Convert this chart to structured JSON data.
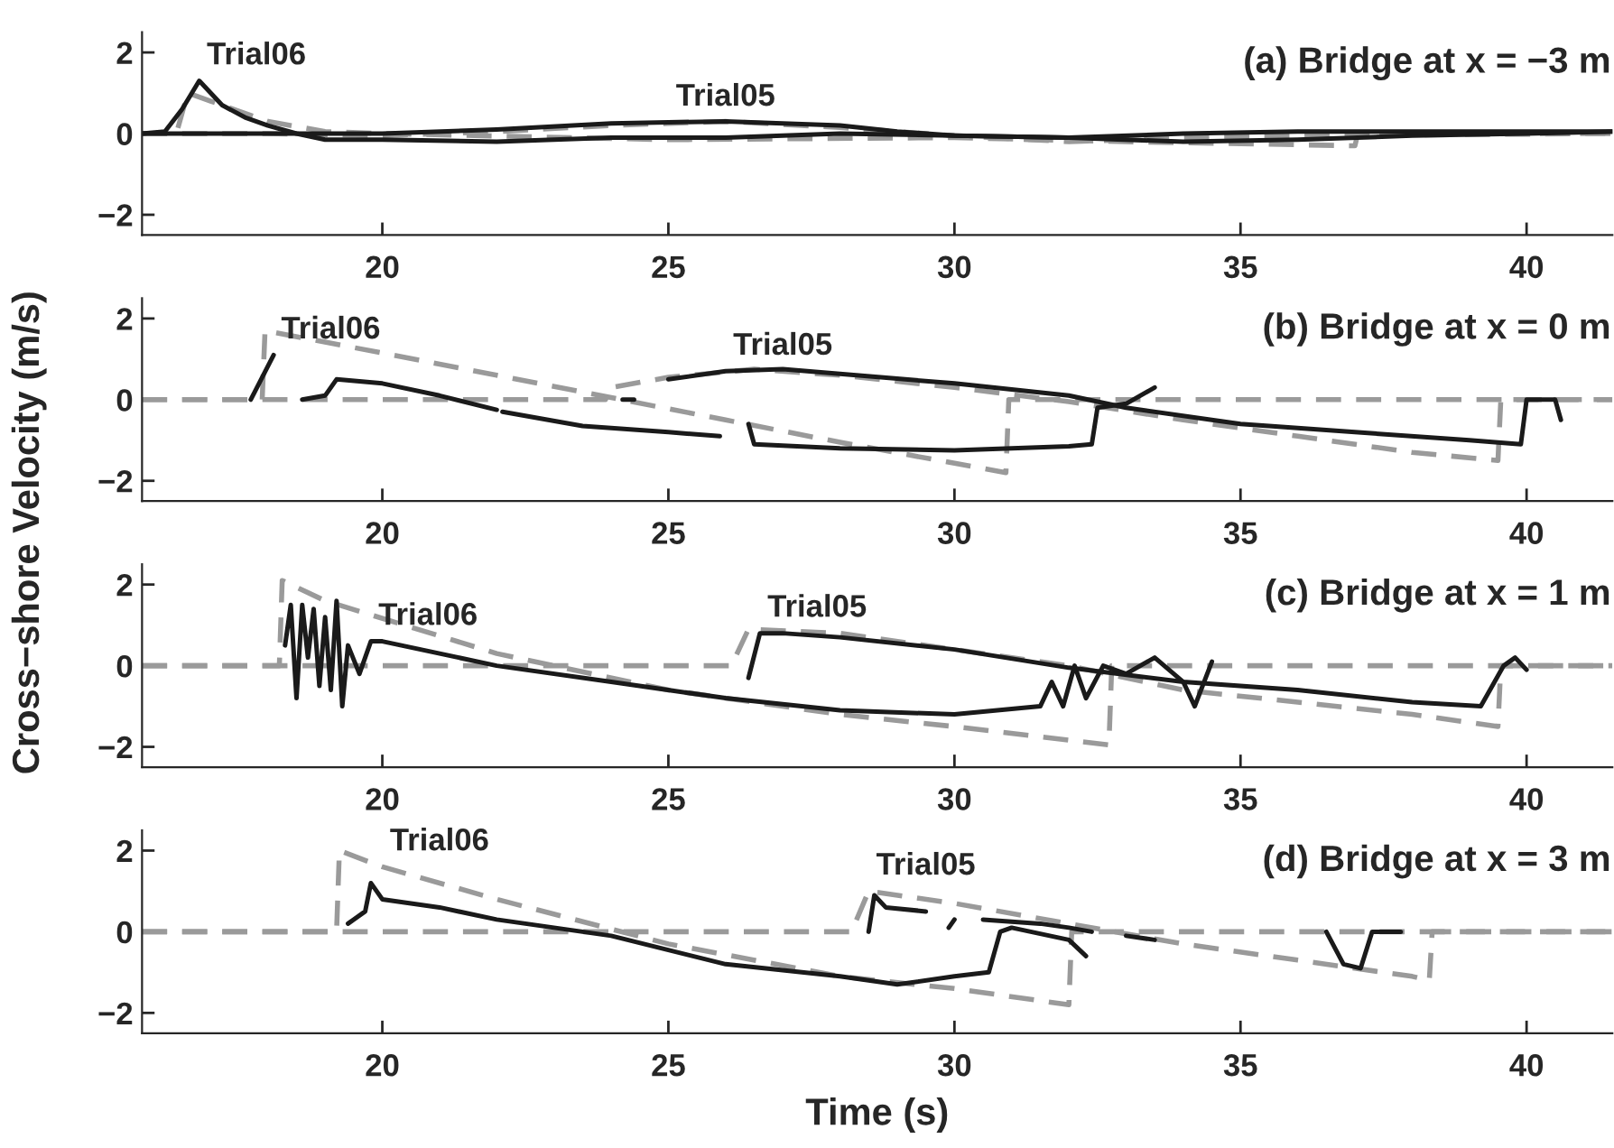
{
  "chart_data": [
    {
      "type": "line",
      "title": "(a) Bridge at x = −3 m",
      "xlim": [
        15.8,
        41.5
      ],
      "xticks": [
        20,
        25,
        30,
        35,
        40
      ],
      "ylim": [
        -2.5,
        2.5
      ],
      "yticks": [
        -2,
        0,
        2
      ],
      "grid": false,
      "legend": false,
      "annotations": [
        {
          "text": "Trial06",
          "x": 16.8,
          "y": 1.3
        },
        {
          "text": "Trial05",
          "x": 25,
          "y": 0.28
        }
      ],
      "series": [
        {
          "color": "#9a9a9a",
          "line_style": "dashed",
          "x": [
            15.8,
            16.4,
            16.6,
            17,
            18,
            19,
            20,
            25,
            30,
            33,
            35,
            37,
            37.05,
            41.5
          ],
          "values": [
            0,
            0,
            1.0,
            0.8,
            0.3,
            0.05,
            0.0,
            -0.15,
            -0.1,
            -0.2,
            -0.25,
            -0.3,
            0,
            0
          ]
        },
        {
          "color": "#9a9a9a",
          "line_style": "dashed",
          "x": [
            15.8,
            18,
            20,
            22,
            24,
            26,
            28,
            30,
            32,
            34,
            36,
            41.5
          ],
          "values": [
            0,
            0,
            -0.05,
            0.05,
            0.2,
            0.3,
            0.15,
            -0.05,
            -0.2,
            -0.1,
            -0.05,
            0
          ]
        },
        {
          "color": "#1a1a1a",
          "line_style": "solid",
          "x": [
            15.8,
            16.2,
            16.5,
            16.8,
            17.2,
            17.6,
            18.0,
            18.5,
            19,
            20,
            22,
            24,
            26,
            28,
            30,
            32,
            34,
            36,
            38,
            40,
            41.5
          ],
          "values": [
            0,
            0.05,
            0.6,
            1.3,
            0.7,
            0.4,
            0.2,
            0.0,
            -0.15,
            -0.15,
            -0.2,
            -0.1,
            -0.1,
            0.0,
            -0.05,
            -0.1,
            -0.2,
            -0.15,
            -0.05,
            0.0,
            0.05
          ]
        },
        {
          "color": "#1a1a1a",
          "line_style": "solid",
          "x": [
            15.8,
            18,
            20,
            22,
            24,
            25,
            26,
            28,
            29,
            30,
            32,
            34,
            36,
            38,
            41.5
          ],
          "values": [
            0,
            0,
            0.0,
            0.1,
            0.25,
            0.28,
            0.3,
            0.2,
            0.05,
            -0.05,
            -0.1,
            0.0,
            0.05,
            0.05,
            0.05
          ]
        }
      ]
    },
    {
      "type": "line",
      "title": "(b) Bridge at x = 0 m",
      "ylabel": "Cross−shore Velocity (m/s)",
      "xlim": [
        15.8,
        41.5
      ],
      "xticks": [
        20,
        25,
        30,
        35,
        40
      ],
      "ylim": [
        -2.5,
        2.5
      ],
      "yticks": [
        -2,
        0,
        2
      ],
      "grid": false,
      "legend": false,
      "annotations": [
        {
          "text": "Trial06",
          "x": 18.1,
          "y": 1.1
        },
        {
          "text": "Trial05",
          "x": 26,
          "y": 0.7
        }
      ],
      "series": [
        {
          "color": "#9a9a9a",
          "line_style": "dashed",
          "x": [
            15.8,
            17.9,
            17.95,
            20,
            22,
            24,
            26,
            28,
            30.9,
            30.95,
            41.5
          ],
          "values": [
            0,
            0,
            1.7,
            1.15,
            0.6,
            0.05,
            -0.5,
            -1.05,
            -1.8,
            0,
            0
          ]
        },
        {
          "color": "#9a9a9a",
          "line_style": "dashed",
          "x": [
            15.8,
            23.9,
            24,
            25,
            26.5,
            28,
            30,
            32,
            34,
            36,
            38,
            39.5,
            39.55,
            41.5
          ],
          "values": [
            0,
            0,
            0.3,
            0.55,
            0.75,
            0.6,
            0.3,
            -0.05,
            -0.5,
            -0.9,
            -1.3,
            -1.5,
            0,
            0
          ]
        },
        {
          "color": "#1a1a1a",
          "line_style": "solid",
          "x": [
            17.7,
            18.1,
            18.3,
            18.6,
            19.0,
            19.2,
            20,
            21,
            22,
            22.05,
            22.1,
            23.5,
            25,
            25.9,
            26.2,
            26.4,
            26.5,
            28,
            30,
            32,
            32.4,
            32.5,
            33,
            33.5
          ],
          "values": [
            0.0,
            1.1,
            null,
            0.0,
            0.1,
            0.5,
            0.4,
            0.1,
            -0.25,
            null,
            -0.3,
            -0.65,
            -0.8,
            -0.9,
            null,
            -0.6,
            -1.1,
            -1.2,
            -1.25,
            -1.15,
            -1.1,
            -0.2,
            -0.1,
            0.3
          ]
        },
        {
          "color": "#1a1a1a",
          "line_style": "solid",
          "x": [
            24.2,
            24.4,
            24.6,
            25,
            26,
            27,
            30,
            32,
            33,
            35,
            37,
            39,
            39.9,
            40.0,
            40.5,
            40.6
          ],
          "values": [
            0.0,
            0.0,
            null,
            0.5,
            0.7,
            0.75,
            0.4,
            0.1,
            -0.2,
            -0.6,
            -0.8,
            -1.0,
            -1.1,
            0.0,
            0.0,
            -0.5
          ]
        }
      ]
    },
    {
      "type": "line",
      "title": "(c) Bridge at x = 1 m",
      "xlim": [
        15.8,
        41.5
      ],
      "xticks": [
        20,
        25,
        30,
        35,
        40
      ],
      "ylim": [
        -2.5,
        2.5
      ],
      "yticks": [
        -2,
        0,
        2
      ],
      "grid": false,
      "legend": false,
      "annotations": [
        {
          "text": "Trial06",
          "x": 19.8,
          "y": 0.6
        },
        {
          "text": "Trial05",
          "x": 26.6,
          "y": 0.8
        }
      ],
      "series": [
        {
          "color": "#9a9a9a",
          "line_style": "dashed",
          "x": [
            15.8,
            18.2,
            18.25,
            19,
            22,
            25,
            28,
            30,
            32.7,
            32.75,
            41.5
          ],
          "values": [
            0,
            0,
            2.1,
            1.6,
            0.3,
            -0.6,
            -1.2,
            -1.5,
            -1.95,
            0,
            0
          ]
        },
        {
          "color": "#9a9a9a",
          "line_style": "dashed",
          "x": [
            15.8,
            26.1,
            26.4,
            28,
            30,
            32,
            34,
            36,
            38,
            39.5,
            39.55,
            41.5
          ],
          "values": [
            0,
            0,
            0.9,
            0.8,
            0.4,
            0.0,
            -0.6,
            -0.9,
            -1.2,
            -1.5,
            0,
            0
          ]
        },
        {
          "color": "#1a1a1a",
          "line_style": "solid",
          "x": [
            18.3,
            18.4,
            18.5,
            18.6,
            18.7,
            18.8,
            18.9,
            19.0,
            19.1,
            19.2,
            19.3,
            19.4,
            19.6,
            19.8,
            20,
            22,
            24,
            26,
            28,
            30,
            31.5,
            31.7,
            31.9,
            32.1,
            32.3,
            32.6,
            33,
            33.5,
            34,
            34.2,
            34.5
          ],
          "values": [
            0.5,
            1.5,
            -0.8,
            1.5,
            0.2,
            1.4,
            -0.5,
            1.2,
            -0.6,
            1.6,
            -1.0,
            0.5,
            -0.2,
            0.6,
            0.6,
            0.0,
            -0.4,
            -0.8,
            -1.1,
            -1.2,
            -1.0,
            -0.4,
            -1.0,
            0.0,
            -0.8,
            0.0,
            -0.2,
            0.2,
            -0.4,
            -1.0,
            0.1
          ]
        },
        {
          "color": "#1a1a1a",
          "line_style": "solid",
          "x": [
            26.4,
            26.6,
            27,
            28,
            30,
            32,
            34,
            36,
            38,
            39.2,
            39.6,
            39.8,
            40
          ],
          "values": [
            -0.3,
            0.8,
            0.8,
            0.7,
            0.4,
            -0.05,
            -0.4,
            -0.6,
            -0.9,
            -1.0,
            0.0,
            0.2,
            -0.1
          ]
        }
      ]
    },
    {
      "type": "line",
      "title": "(d) Bridge at x = 3 m",
      "xlabel": "Time (s)",
      "xlim": [
        15.8,
        41.5
      ],
      "xticks": [
        20,
        25,
        30,
        35,
        40
      ],
      "ylim": [
        -2.5,
        2.5
      ],
      "yticks": [
        -2,
        0,
        2
      ],
      "grid": false,
      "legend": false,
      "annotations": [
        {
          "text": "Trial06",
          "x": 20,
          "y": 1.6
        },
        {
          "text": "Trial05",
          "x": 28.5,
          "y": 1.0
        }
      ],
      "series": [
        {
          "color": "#9a9a9a",
          "line_style": "dashed",
          "x": [
            15.8,
            19.2,
            19.25,
            20,
            22,
            25,
            28,
            30,
            32,
            32.05,
            41.5
          ],
          "values": [
            0,
            0,
            2.0,
            1.6,
            0.8,
            -0.3,
            -1.1,
            -1.4,
            -1.8,
            0,
            0
          ]
        },
        {
          "color": "#9a9a9a",
          "line_style": "dashed",
          "x": [
            15.8,
            28.2,
            28.5,
            30,
            32,
            34,
            36,
            38,
            38.3,
            38.35,
            41.5
          ],
          "values": [
            0,
            0,
            1.0,
            0.7,
            0.2,
            -0.3,
            -0.7,
            -1.1,
            -1.2,
            0,
            0
          ]
        },
        {
          "color": "#1a1a1a",
          "line_style": "solid",
          "x": [
            19.4,
            19.7,
            19.8,
            20,
            21,
            22,
            24,
            26,
            28,
            29,
            30,
            30.6,
            30.8,
            31,
            32,
            32.3
          ],
          "values": [
            0.2,
            0.5,
            1.2,
            0.8,
            0.6,
            0.3,
            -0.1,
            -0.8,
            -1.1,
            -1.3,
            -1.1,
            -1.0,
            0.0,
            0.1,
            -0.2,
            -0.6
          ]
        },
        {
          "color": "#1a1a1a",
          "line_style": "solid",
          "x": [
            28.5,
            28.6,
            28.8,
            29.5,
            29.7,
            29.9,
            30,
            30.2,
            30.5,
            31.5,
            32,
            32.4,
            32.7,
            33,
            33.5,
            35,
            36.5,
            36.8,
            37.1,
            37.3,
            37.8
          ],
          "values": [
            0.0,
            0.9,
            0.6,
            0.5,
            null,
            0.1,
            0.3,
            null,
            0.3,
            0.2,
            0.1,
            0.0,
            null,
            -0.1,
            -0.2,
            null,
            0.0,
            -0.8,
            -0.9,
            0.0,
            0.0
          ]
        }
      ]
    }
  ]
}
